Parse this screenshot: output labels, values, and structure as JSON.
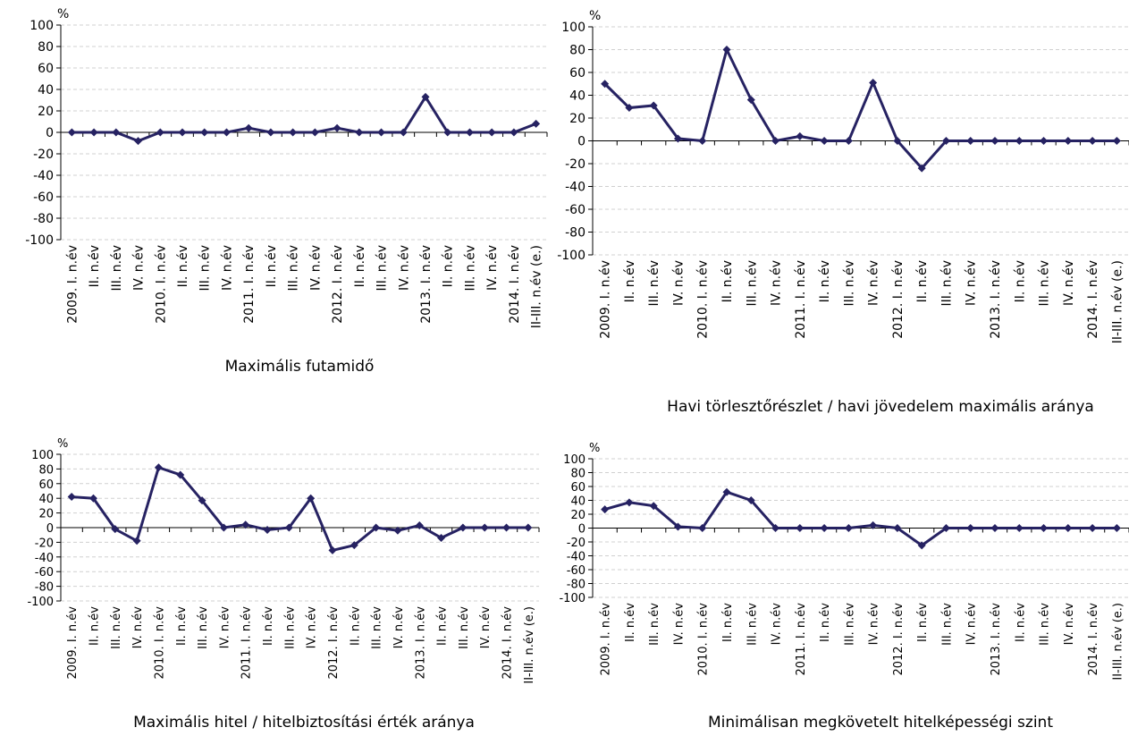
{
  "chart_data": [
    {
      "type": "line",
      "title": "Maximális futamidő",
      "unit": "%",
      "categories": [
        "2009. I. n.év",
        "II. n.év",
        "III. n.év",
        "IV. n.év",
        "2010. I. n.év",
        "II. n.év",
        "III. n.év",
        "IV. n.év",
        "2011. I. n.év",
        "II. n.év",
        "III. n.év",
        "IV. n.év",
        "2012. I. n.év",
        "II. n.év",
        "III. n.év",
        "IV. n.év",
        "2013. I. n.év",
        "II. n.év",
        "III. n.év",
        "IV. n.év",
        "2014. I. n.év",
        "II-III. n.év (e.)"
      ],
      "values": [
        0,
        0,
        0,
        -8,
        0,
        0,
        0,
        0,
        4,
        0,
        0,
        0,
        4,
        0,
        0,
        0,
        33,
        0,
        0,
        0,
        0,
        8
      ],
      "color": "#262262",
      "ylim": [
        -100,
        100
      ],
      "yticks": [
        -100,
        -80,
        -60,
        -40,
        -20,
        0,
        20,
        40,
        60,
        80,
        100
      ],
      "grid": true
    },
    {
      "type": "line",
      "title": "Havi törlesztőrészlet / havi jövedelem maximális aránya",
      "unit": "%",
      "categories": [
        "2009. I. n.év",
        "II. n.év",
        "III. n.év",
        "IV. n.év",
        "2010. I. n.év",
        "II. n.év",
        "III. n.év",
        "IV. n.év",
        "2011. I. n.év",
        "II. n.év",
        "III. n.év",
        "IV. n.év",
        "2012. I. n.év",
        "II. n.év",
        "III. n.év",
        "IV. n.év",
        "2013. I. n.év",
        "II. n.év",
        "III. n.év",
        "IV. n.év",
        "2014. I. n.év",
        "II-III. n.év (e.)"
      ],
      "values": [
        50,
        29,
        31,
        2,
        0,
        80,
        36,
        0,
        4,
        0,
        0,
        51,
        0,
        -24,
        0,
        0,
        0,
        0,
        0,
        0,
        0,
        0
      ],
      "color": "#262262",
      "ylim": [
        -100,
        100
      ],
      "yticks": [
        -100,
        -80,
        -60,
        -40,
        -20,
        0,
        20,
        40,
        60,
        80,
        100
      ],
      "grid": true
    },
    {
      "type": "line",
      "title": "Maximális hitel / hitelbiztosítási érték aránya",
      "unit": "%",
      "categories": [
        "2009. I. n.év",
        "II. n.év",
        "III. n.év",
        "IV. n.év",
        "2010. I. n.év",
        "II. n.év",
        "III. n.év",
        "IV. n.év",
        "2011. I. n.év",
        "II. n.év",
        "III. n.év",
        "IV. n.év",
        "2012. I. n.év",
        "II. n.év",
        "III. n.év",
        "IV. n.év",
        "2013. I. n.év",
        "II. n.év",
        "III. n.év",
        "IV. n.év",
        "2014. I. n.év",
        "II-III. n.év (e.)"
      ],
      "values": [
        42,
        40,
        -2,
        -18,
        82,
        72,
        37,
        0,
        4,
        -3,
        0,
        40,
        -31,
        -24,
        0,
        -4,
        3,
        -14,
        0,
        0,
        0,
        0
      ],
      "color": "#262262",
      "ylim": [
        -100,
        100
      ],
      "yticks": [
        -100,
        -80,
        -60,
        -40,
        -20,
        0,
        20,
        40,
        60,
        80,
        100
      ],
      "grid": true
    },
    {
      "type": "line",
      "title": "Minimálisan megkövetelt hitelképességi szint",
      "unit": "%",
      "categories": [
        "2009. I. n.év",
        "II. n.év",
        "III. n.év",
        "IV. n.év",
        "2010. I. n.év",
        "II. n.év",
        "III. n.év",
        "IV. n.év",
        "2011. I. n.év",
        "II. n.év",
        "III. n.év",
        "IV. n.év",
        "2012. I. n.év",
        "II. n.év",
        "III. n.év",
        "IV. n.év",
        "2013. I. n.év",
        "II. n.év",
        "III. n.év",
        "IV. n.év",
        "2014. I. n.év",
        "II-III. n.év (e.)"
      ],
      "values": [
        27,
        37,
        32,
        2,
        0,
        52,
        40,
        0,
        0,
        0,
        0,
        4,
        0,
        -25,
        0,
        0,
        0,
        0,
        0,
        0,
        0,
        0
      ],
      "color": "#262262",
      "ylim": [
        -100,
        100
      ],
      "yticks": [
        -100,
        -80,
        -60,
        -40,
        -20,
        0,
        20,
        40,
        60,
        80,
        100
      ],
      "grid": true
    }
  ]
}
